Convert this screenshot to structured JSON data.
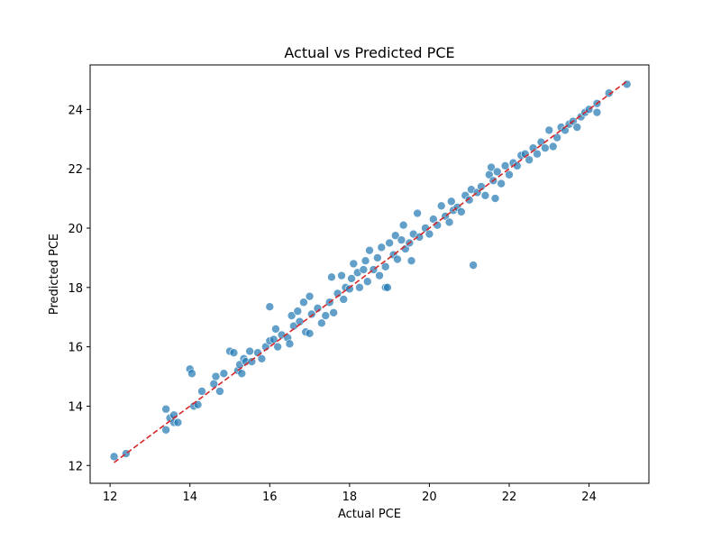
{
  "chart_data": {
    "type": "scatter",
    "title": "Actual vs Predicted PCE",
    "xlabel": "Actual PCE",
    "ylabel": "Predicted PCE",
    "xlim": [
      11.5,
      25.5
    ],
    "ylim": [
      11.4,
      25.5
    ],
    "xticks": [
      12,
      14,
      16,
      18,
      20,
      22,
      24
    ],
    "yticks": [
      12,
      14,
      16,
      18,
      20,
      22,
      24
    ],
    "grid": false,
    "legend": "none",
    "colors": {
      "points": "#1f77b4",
      "reference_line": "#d62728"
    },
    "reference_line": {
      "x": [
        12.1,
        24.95
      ],
      "y": [
        12.1,
        24.95
      ],
      "style": "dashed"
    },
    "series": [
      {
        "points": [
          [
            12.1,
            12.3
          ],
          [
            12.4,
            12.4
          ],
          [
            13.4,
            13.2
          ],
          [
            13.4,
            13.9
          ],
          [
            13.5,
            13.6
          ],
          [
            13.6,
            13.7
          ],
          [
            13.6,
            13.45
          ],
          [
            13.7,
            13.45
          ],
          [
            14.0,
            15.25
          ],
          [
            14.05,
            15.1
          ],
          [
            14.1,
            14.0
          ],
          [
            14.2,
            14.05
          ],
          [
            14.3,
            14.5
          ],
          [
            14.6,
            14.75
          ],
          [
            14.65,
            15.0
          ],
          [
            14.75,
            14.5
          ],
          [
            14.85,
            15.1
          ],
          [
            15.0,
            15.85
          ],
          [
            15.1,
            15.8
          ],
          [
            15.2,
            15.2
          ],
          [
            15.25,
            15.4
          ],
          [
            15.3,
            15.1
          ],
          [
            15.35,
            15.6
          ],
          [
            15.4,
            15.5
          ],
          [
            15.5,
            15.85
          ],
          [
            15.55,
            15.5
          ],
          [
            15.7,
            15.8
          ],
          [
            15.8,
            15.6
          ],
          [
            15.9,
            16.0
          ],
          [
            16.0,
            17.35
          ],
          [
            16.0,
            16.2
          ],
          [
            16.1,
            16.25
          ],
          [
            16.15,
            16.6
          ],
          [
            16.2,
            16.0
          ],
          [
            16.3,
            16.4
          ],
          [
            16.45,
            16.3
          ],
          [
            16.5,
            16.1
          ],
          [
            16.55,
            17.05
          ],
          [
            16.6,
            16.7
          ],
          [
            16.7,
            17.2
          ],
          [
            16.75,
            16.85
          ],
          [
            16.85,
            17.5
          ],
          [
            16.9,
            16.5
          ],
          [
            17.0,
            17.7
          ],
          [
            17.0,
            16.45
          ],
          [
            17.05,
            17.1
          ],
          [
            17.2,
            17.3
          ],
          [
            17.3,
            16.8
          ],
          [
            17.4,
            17.05
          ],
          [
            17.5,
            17.5
          ],
          [
            17.55,
            18.35
          ],
          [
            17.6,
            17.15
          ],
          [
            17.7,
            17.8
          ],
          [
            17.8,
            18.4
          ],
          [
            17.85,
            17.6
          ],
          [
            17.9,
            18.0
          ],
          [
            18.0,
            17.95
          ],
          [
            18.05,
            18.3
          ],
          [
            18.1,
            18.8
          ],
          [
            18.2,
            18.5
          ],
          [
            18.25,
            18.0
          ],
          [
            18.35,
            18.6
          ],
          [
            18.4,
            18.9
          ],
          [
            18.45,
            18.2
          ],
          [
            18.5,
            19.25
          ],
          [
            18.6,
            18.6
          ],
          [
            18.7,
            19.0
          ],
          [
            18.75,
            18.4
          ],
          [
            18.8,
            19.35
          ],
          [
            18.9,
            18.7
          ],
          [
            18.9,
            18.0
          ],
          [
            18.95,
            18.0
          ],
          [
            19.0,
            19.5
          ],
          [
            19.1,
            19.1
          ],
          [
            19.15,
            19.75
          ],
          [
            19.2,
            18.95
          ],
          [
            19.3,
            19.6
          ],
          [
            19.35,
            20.1
          ],
          [
            19.4,
            19.3
          ],
          [
            19.5,
            19.5
          ],
          [
            19.55,
            18.9
          ],
          [
            19.6,
            19.8
          ],
          [
            19.7,
            20.5
          ],
          [
            19.75,
            19.7
          ],
          [
            19.9,
            20.0
          ],
          [
            20.0,
            19.8
          ],
          [
            20.1,
            20.3
          ],
          [
            20.2,
            20.1
          ],
          [
            20.3,
            20.75
          ],
          [
            20.4,
            20.4
          ],
          [
            20.5,
            20.2
          ],
          [
            20.55,
            20.9
          ],
          [
            20.6,
            20.6
          ],
          [
            20.7,
            20.7
          ],
          [
            20.8,
            20.55
          ],
          [
            20.9,
            21.1
          ],
          [
            21.0,
            20.95
          ],
          [
            21.05,
            21.3
          ],
          [
            21.1,
            18.75
          ],
          [
            21.2,
            21.2
          ],
          [
            21.3,
            21.4
          ],
          [
            21.4,
            21.1
          ],
          [
            21.5,
            21.8
          ],
          [
            21.55,
            22.05
          ],
          [
            21.6,
            21.6
          ],
          [
            21.65,
            21.0
          ],
          [
            21.7,
            21.9
          ],
          [
            21.8,
            21.5
          ],
          [
            21.9,
            22.1
          ],
          [
            22.0,
            21.8
          ],
          [
            22.1,
            22.2
          ],
          [
            22.2,
            22.1
          ],
          [
            22.3,
            22.45
          ],
          [
            22.4,
            22.5
          ],
          [
            22.5,
            22.3
          ],
          [
            22.6,
            22.7
          ],
          [
            22.7,
            22.5
          ],
          [
            22.8,
            22.9
          ],
          [
            22.9,
            22.7
          ],
          [
            23.0,
            23.3
          ],
          [
            23.1,
            22.75
          ],
          [
            23.2,
            23.05
          ],
          [
            23.3,
            23.4
          ],
          [
            23.4,
            23.3
          ],
          [
            23.5,
            23.5
          ],
          [
            23.6,
            23.6
          ],
          [
            23.7,
            23.4
          ],
          [
            23.8,
            23.75
          ],
          [
            23.9,
            23.9
          ],
          [
            24.0,
            24.0
          ],
          [
            24.2,
            23.9
          ],
          [
            24.2,
            24.2
          ],
          [
            24.5,
            24.55
          ],
          [
            24.95,
            24.85
          ]
        ]
      }
    ]
  }
}
